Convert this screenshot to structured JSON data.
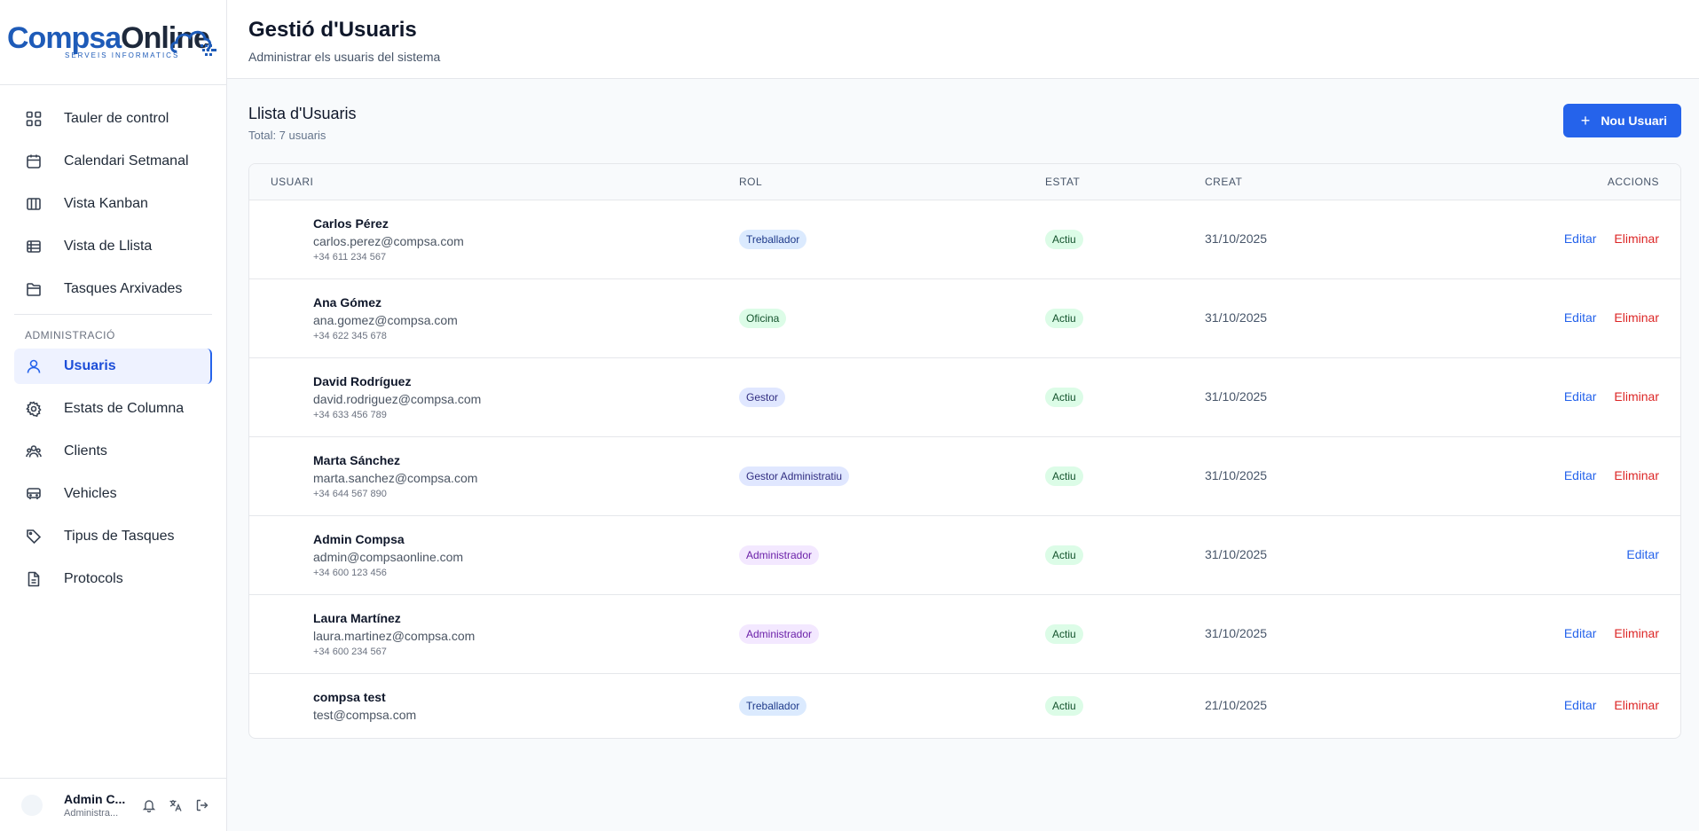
{
  "brand": {
    "name_a": "Compsa",
    "name_b": "Online",
    "tagline": "SERVEIS INFORMATICS"
  },
  "nav": {
    "main": [
      {
        "label": "Tauler de control",
        "icon": "dashboard-icon"
      },
      {
        "label": "Calendari Setmanal",
        "icon": "calendar-icon"
      },
      {
        "label": "Vista Kanban",
        "icon": "kanban-icon"
      },
      {
        "label": "Vista de Llista",
        "icon": "list-icon"
      },
      {
        "label": "Tasques Arxivades",
        "icon": "folder-icon"
      }
    ],
    "section_title": "ADMINISTRACIÓ",
    "admin": [
      {
        "label": "Usuaris",
        "icon": "user-icon",
        "active": true
      },
      {
        "label": "Estats de Columna",
        "icon": "gear-icon"
      },
      {
        "label": "Clients",
        "icon": "users-icon"
      },
      {
        "label": "Vehicles",
        "icon": "bus-icon"
      },
      {
        "label": "Tipus de Tasques",
        "icon": "tag-icon"
      },
      {
        "label": "Protocols",
        "icon": "document-icon"
      }
    ]
  },
  "footer": {
    "user_name": "Admin C...",
    "user_role": "Administra..."
  },
  "header": {
    "title": "Gestió d'Usuaris",
    "subtitle": "Administrar els usuaris del sistema"
  },
  "list": {
    "title": "Llista d'Usuaris",
    "total": "Total: 7 usuaris",
    "new_button": "Nou Usuari",
    "columns": {
      "user": "USUARI",
      "rol": "ROL",
      "estat": "ESTAT",
      "creat": "CREAT",
      "accions": "ACCIONS"
    },
    "edit_label": "Editar",
    "delete_label": "Eliminar",
    "rows": [
      {
        "name": "Carlos Pérez",
        "email": "carlos.perez@compsa.com",
        "phone": "+34 611 234 567",
        "rol": "Treballador",
        "rol_color": "#dbeafe",
        "estat": "Actiu",
        "creat": "31/10/2025",
        "can_delete": true
      },
      {
        "name": "Ana Gómez",
        "email": "ana.gomez@compsa.com",
        "phone": "+34 622 345 678",
        "rol": "Oficina",
        "rol_color": "#dcfce7",
        "estat": "Actiu",
        "creat": "31/10/2025",
        "can_delete": true
      },
      {
        "name": "David Rodríguez",
        "email": "david.rodriguez@compsa.com",
        "phone": "+34 633 456 789",
        "rol": "Gestor",
        "rol_color": "#e0e7ff",
        "estat": "Actiu",
        "creat": "31/10/2025",
        "can_delete": true
      },
      {
        "name": "Marta Sánchez",
        "email": "marta.sanchez@compsa.com",
        "phone": "+34 644 567 890",
        "rol": "Gestor Administratiu",
        "rol_color": "#e0e7ff",
        "estat": "Actiu",
        "creat": "31/10/2025",
        "can_delete": true
      },
      {
        "name": "Admin Compsa",
        "email": "admin@compsaonline.com",
        "phone": "+34 600 123 456",
        "rol": "Administrador",
        "rol_color": "#f3e8ff",
        "estat": "Actiu",
        "creat": "31/10/2025",
        "can_delete": false
      },
      {
        "name": "Laura Martínez",
        "email": "laura.martinez@compsa.com",
        "phone": "+34 600 234 567",
        "rol": "Administrador",
        "rol_color": "#f3e8ff",
        "estat": "Actiu",
        "creat": "31/10/2025",
        "can_delete": true
      },
      {
        "name": "compsa test",
        "email": "test@compsa.com",
        "phone": "",
        "rol": "Treballador",
        "rol_color": "#dbeafe",
        "estat": "Actiu",
        "creat": "21/10/2025",
        "can_delete": true
      }
    ]
  }
}
